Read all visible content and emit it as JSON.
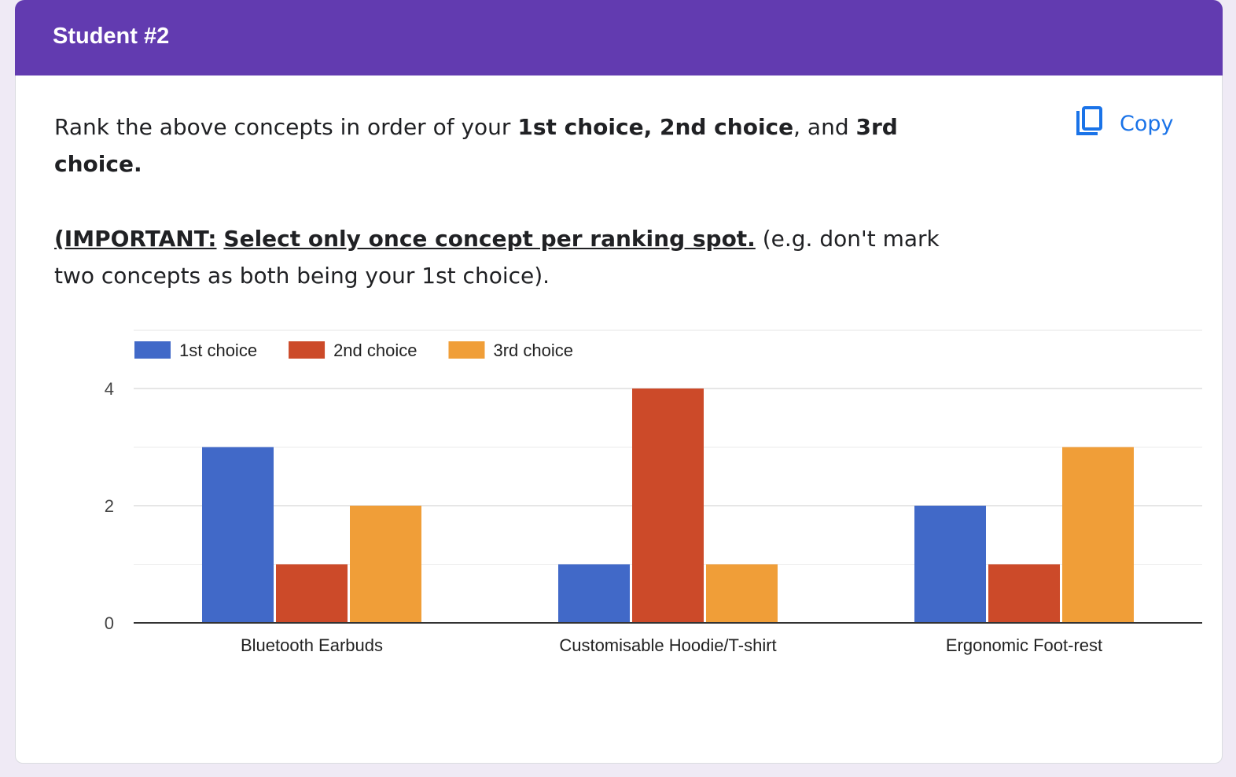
{
  "header": {
    "title": "Student #2"
  },
  "question": {
    "line1_pre": "Rank the above concepts in order of your ",
    "line1_bold1": "1st choice, 2nd choice",
    "line1_mid": ", and ",
    "line1_bold2": "3rd choice.",
    "important_label": "(IMPORTANT:",
    "important_text": "Select only once concept per ranking spot.",
    "tail": " (e.g. don't mark two concepts as both being your 1st choice)."
  },
  "copy_button": {
    "label": "Copy",
    "icon": "copy-icon"
  },
  "colors": {
    "header": "#623bb0",
    "link": "#1a73e8",
    "series": [
      "#4169c8",
      "#cc4a29",
      "#f09e38"
    ]
  },
  "chart_data": {
    "type": "bar",
    "categories": [
      "Bluetooth Earbuds",
      "Customisable Hoodie/T-shirt",
      "Ergonomic Foot-rest"
    ],
    "series": [
      {
        "name": "1st choice",
        "values": [
          3,
          1,
          2
        ]
      },
      {
        "name": "2nd choice",
        "values": [
          1,
          4,
          1
        ]
      },
      {
        "name": "3rd choice",
        "values": [
          2,
          1,
          3
        ]
      }
    ],
    "yticks": [
      "0",
      "2",
      "4"
    ],
    "ylim": [
      0,
      4
    ],
    "grid": true,
    "legend": "top-left"
  }
}
